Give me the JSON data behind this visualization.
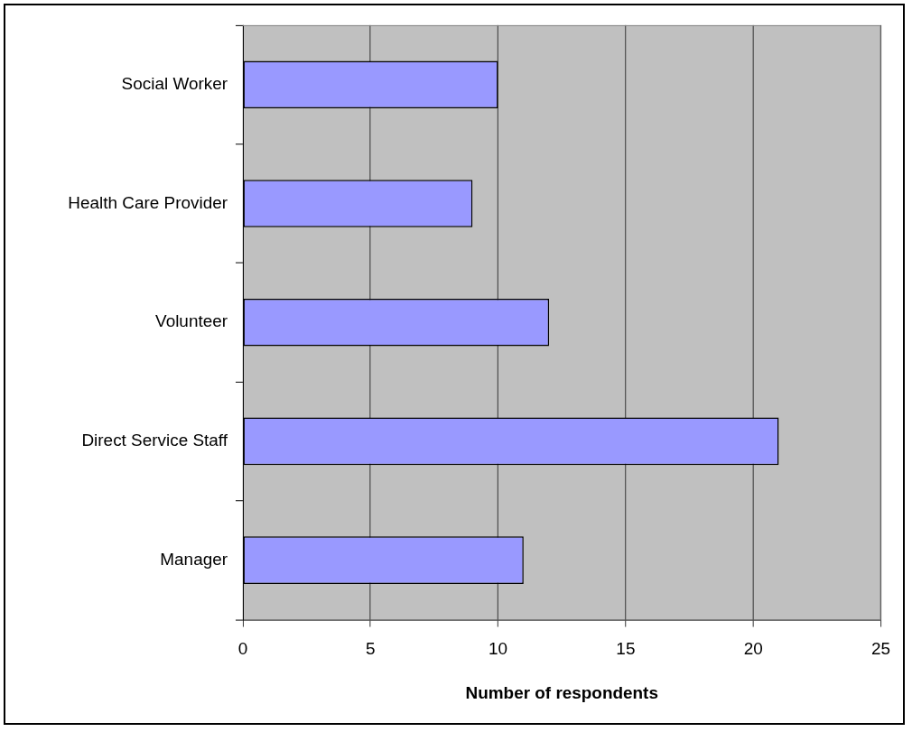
{
  "chart_data": {
    "type": "bar",
    "orientation": "horizontal",
    "xlabel": "Number of respondents",
    "categories": [
      "Social Worker",
      "Health Care Provider",
      "Volunteer",
      "Direct Service Staff",
      "Manager"
    ],
    "values": [
      10,
      9,
      12,
      21,
      11
    ],
    "color": "#9999ff",
    "xlim": [
      0,
      25
    ],
    "xticks": [
      0,
      5,
      10,
      15,
      20,
      25
    ],
    "grid": "x"
  }
}
